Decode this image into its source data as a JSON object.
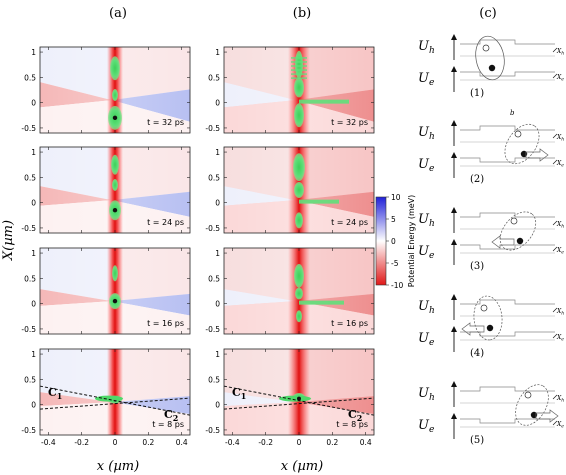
{
  "figure": {
    "column_labels": [
      "(a)",
      "(b)",
      "(c)"
    ],
    "xlabel": "x (µm)",
    "ylabel": "X(µm)",
    "x_ticks": [
      "-0.4",
      "-0.2",
      "0",
      "0.2",
      "0.4"
    ],
    "y_ticks": [
      "1",
      "0.5",
      "0",
      "-0.5"
    ],
    "x_tick_values": [
      -0.4,
      -0.2,
      0,
      0.2,
      0.4
    ],
    "y_tick_values": [
      1,
      0.5,
      0,
      -0.5
    ],
    "xlim": [
      -0.45,
      0.45
    ],
    "ylim": [
      -0.6,
      1.1
    ],
    "time_labels": [
      "t = 32 ps",
      "t = 24 ps",
      "t = 16 ps",
      "t = 8 ps"
    ],
    "region_labels": {
      "c1": "C",
      "c1_sub": "1",
      "c2": "C",
      "c2_sub": "2"
    },
    "colorbar": {
      "label": "Potential Energy (meV)",
      "ticks": [
        "10",
        "5",
        "0",
        "-5",
        "-10"
      ],
      "tick_values": [
        10,
        5,
        0,
        -5,
        -10
      ],
      "range": [
        -10,
        10
      ],
      "colors": {
        "max": "#2020d8",
        "mid": "#ffffff",
        "min": "#e01818"
      }
    },
    "schematic": {
      "Uh": "U",
      "Uh_sub": "h",
      "Ue": "U",
      "Ue_sub": "e",
      "panels": [
        "(1)",
        "(2)",
        "(3)",
        "(4)",
        "(5)"
      ],
      "right_labels": [
        "X",
        "X"
      ],
      "right_subs": [
        "h",
        "e"
      ],
      "label_b": "b"
    }
  }
}
